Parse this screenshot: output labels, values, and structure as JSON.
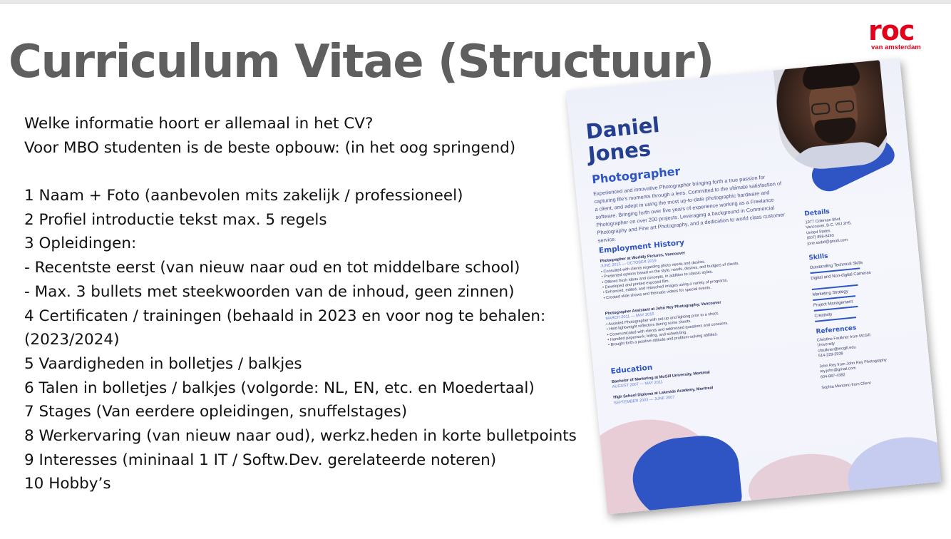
{
  "slide": {
    "title": "Curriculum Vitae (Structuur)"
  },
  "logo": {
    "word": "roc",
    "subtitle": "van amsterdam"
  },
  "content": {
    "lines": [
      "Welke informatie hoort er allemaal in het CV?",
      "Voor MBO studenten is de beste opbouw: (in het oog springend)",
      "",
      "1 Naam + Foto (aanbevolen mits zakelijk / professioneel)",
      "2 Profiel introductie tekst max. 5 regels",
      "3 Opleidingen:",
      "- Recentste eerst (van nieuw naar oud en tot middelbare school)",
      "- Max. 3 bullets met steekwoorden van de inhoud, geen zinnen)",
      "4 Certificaten / trainingen (behaald in 2023 en voor nog te behalen:",
      "(2023/2024)",
      "5 Vaardigheden in bolletjes / balkjes",
      "6 Talen in bolletjes / balkjes (volgorde: NL, EN, etc. en Moedertaal)",
      "7 Stages (Van eerdere opleidingen, snuffelstages)",
      "8 Werkervaring (van nieuw naar oud), werkz.heden in korte bulletpoints",
      "9 Interesses (mininaal 1 IT / Softw.Dev. gerelateerde noteren)",
      "10 Hobby’s"
    ]
  },
  "cv": {
    "first_name": "Daniel",
    "last_name": "Jones",
    "role": "Photographer",
    "intro": "Experienced and innovative Photographer bringing forth a true passion for capturing life's moments through a lens. Committed to the ultimate satisfaction of a client, and adept in using the most up-to-date photographic hardware and software. Bringing forth over five years of experience working as a Freelance Photographer on over 200 projects. Leveraging a background in Commercial Photography and Fine art Photography, and a dedication to world class customer service.",
    "employment_heading": "Employment History",
    "job1_title": "Photographer at Worldly Pictures, Vancouver",
    "job1_dates": "JUNE 2015 — OCTOBER 2019",
    "job1_bullets": "• Consulted with clients regarding photo needs and desires.\n• Presented options based on the style, needs, desires, and budgets of clients.\n• Offered fresh ideas and concepts, in addition to classic styles.\n• Developed and printed exposed film.\n• Enhanced, edited, and retouched images using a variety of programs.\n• Created slide shows and thematic videos for special events.",
    "job2_title": "Photographer Assistant at John Rey Photography, Vancouver",
    "job2_dates": "MARCH 2011 — MAY 2015",
    "job2_bullets": "• Assisted Photographer with set-up and lighting prior to a shoot.\n• Held lightweight reflectors during some shoots.\n• Communicated with clients and addressed questions and concerns.\n• Handled paperwork, billing, and scheduling.\n• Brought forth a positive attitude and problem-solving abilities.",
    "education_heading": "Education",
    "edu1_title": "Bachelor of Marketing at McGill University, Montreal",
    "edu1_dates": "AUGUST 2007 — MAY 2011",
    "edu2_title": "High School Diploma at Lakeside Academy, Montreal",
    "edu2_dates": "SEPTEMBER 2003 — JUNE 2007",
    "details_heading": "Details",
    "details_text": "1977 Coleman Blvd,\nVancouver, B.C. V6J 2H5,\nUnited States\n(607) 898-8493\njone.ssdaf@gmail.com",
    "skills_heading": "Skills",
    "skills": [
      "Outstanding Technical Skills",
      "Digital and Non-digital Cameras",
      "Marketing Strategy",
      "Project Management",
      "Creativity"
    ],
    "references_heading": "References",
    "references_text": "Christine Faulkner from McGill University\ncfaulkner@mcgill.edu\n514-229-2938\n\nJohn Rey from John Rey Photography\nrey.john@gmail.com\n604-887-4382\n\nSophia Montano from Client"
  },
  "colors": {
    "title_gray": "#5f5f5f",
    "logo_red": "#e3001b",
    "cv_blue": "#2f55c4"
  }
}
